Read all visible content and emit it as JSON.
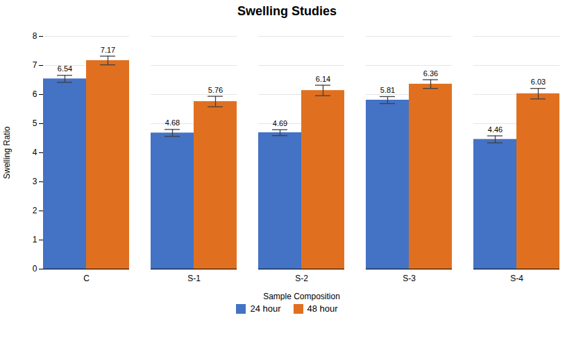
{
  "chart_data": {
    "type": "bar",
    "title": "Swelling Studies",
    "xlabel": "Sample Composition",
    "ylabel": "Swelling Ratio",
    "categories": [
      "C",
      "S-1",
      "S-2",
      "S-3",
      "S-4"
    ],
    "series": [
      {
        "name": "24 hour",
        "color": "#4472c4",
        "values": [
          6.54,
          4.68,
          4.69,
          5.81,
          4.46
        ],
        "errors": [
          0.12,
          0.12,
          0.1,
          0.12,
          0.12
        ]
      },
      {
        "name": "48 hour",
        "color": "#e07020",
        "values": [
          7.17,
          5.76,
          6.14,
          6.36,
          6.03
        ],
        "errors": [
          0.15,
          0.18,
          0.18,
          0.15,
          0.18
        ]
      }
    ],
    "ylim": [
      0,
      8
    ],
    "yticks": [
      0,
      1,
      2,
      3,
      4,
      5,
      6,
      7,
      8
    ],
    "grid": true,
    "legend": "bottom",
    "data_labels": true
  }
}
